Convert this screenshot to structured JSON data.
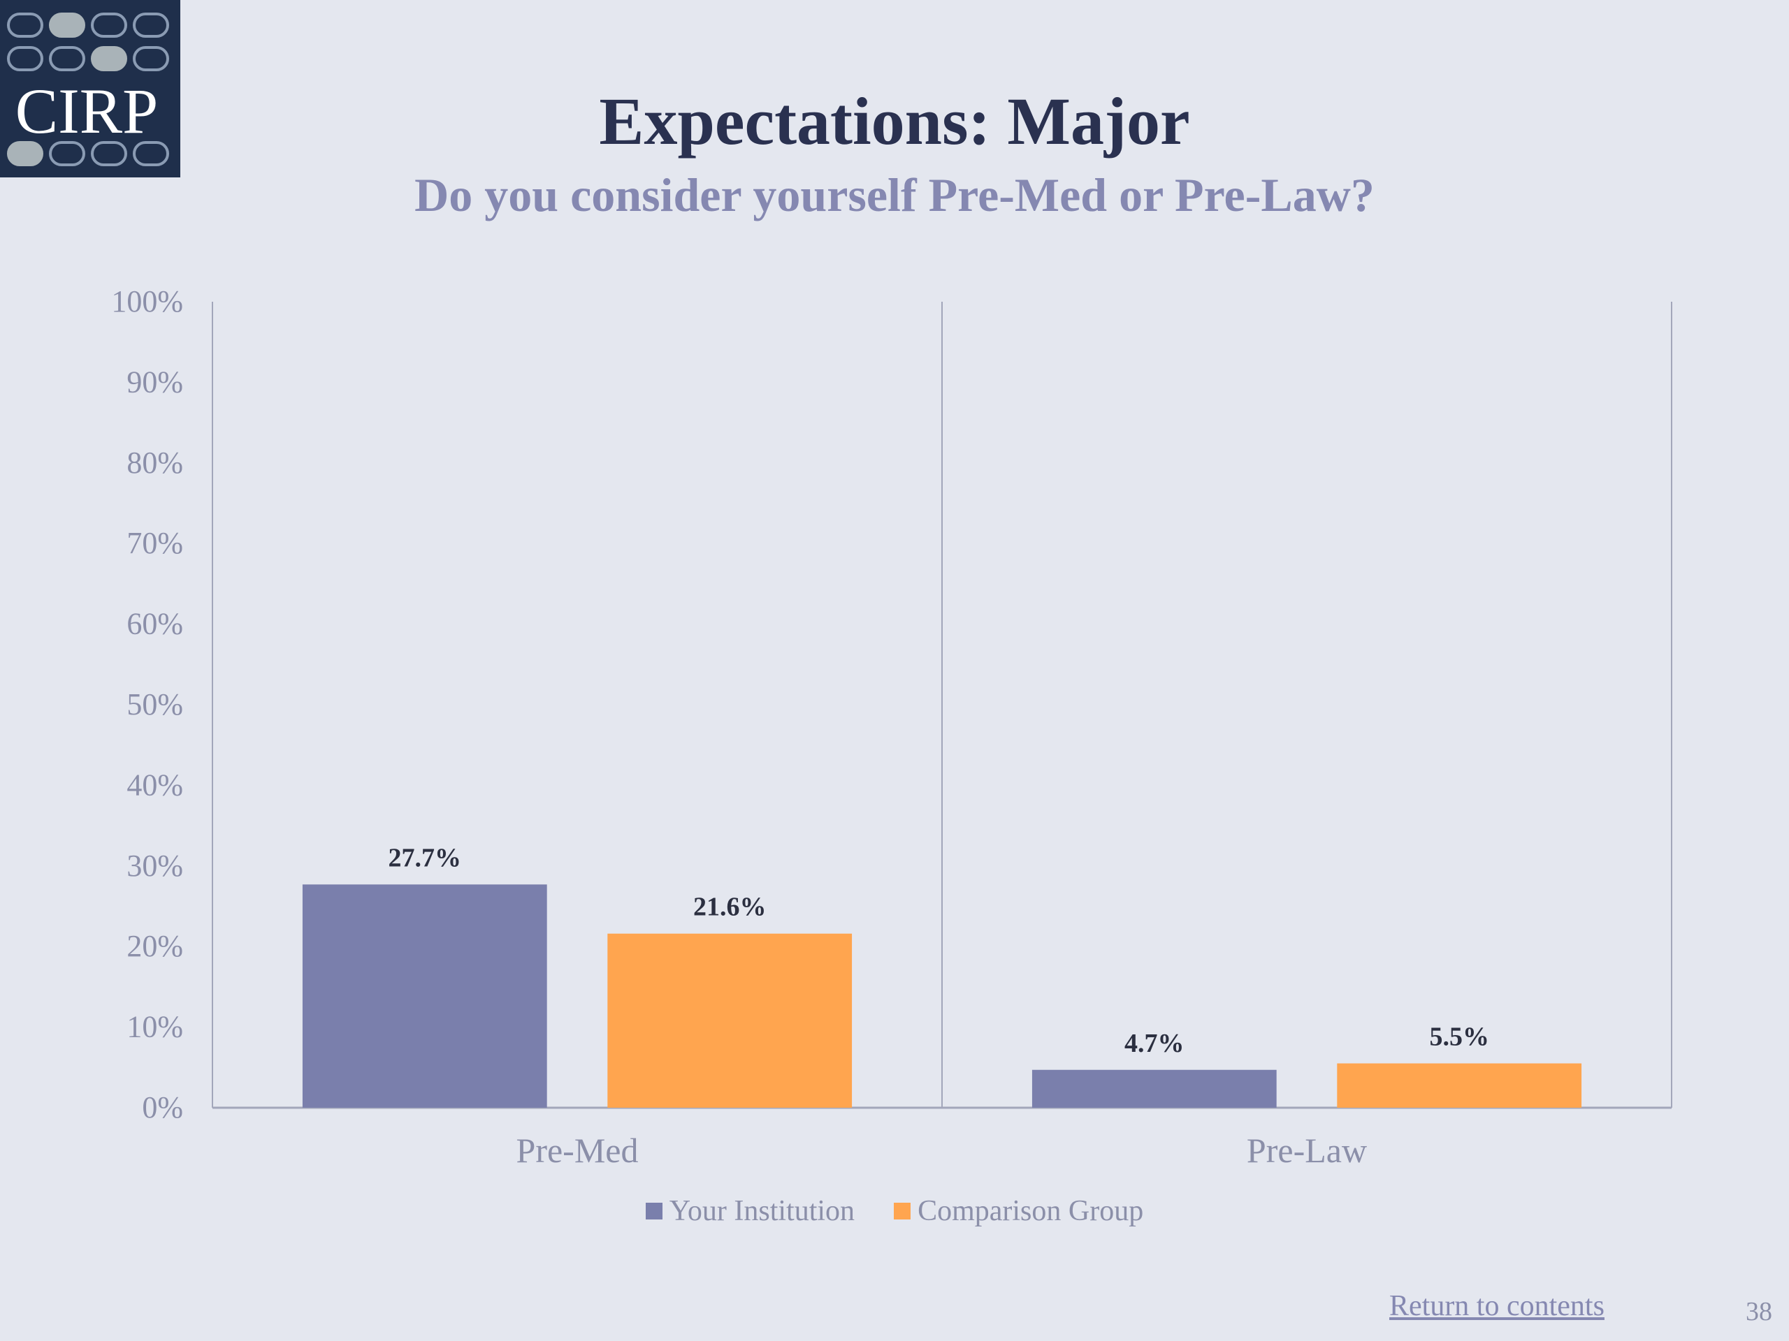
{
  "logo": {
    "text": "CIRP"
  },
  "slide": {
    "title": "Expectations: Major",
    "subtitle": "Do you consider yourself Pre-Med or Pre-Law?",
    "return_link": "Return to contents",
    "page_number": "38"
  },
  "colors": {
    "background": "#e4e7ef",
    "logo_bg": "#1f2f4b",
    "series_1": "#7a7fac",
    "series_2": "#ffa54f",
    "axis_text": "#8b8fa9"
  },
  "chart_data": {
    "type": "bar",
    "categories": [
      "Pre-Med",
      "Pre-Law"
    ],
    "series": [
      {
        "name": "Your Institution",
        "values": [
          27.7,
          4.7
        ],
        "labels": [
          "27.7%",
          "4.7%"
        ],
        "color": "#7a7fac"
      },
      {
        "name": "Comparison Group",
        "values": [
          21.6,
          5.5
        ],
        "labels": [
          "21.6%",
          "5.5%"
        ],
        "color": "#ffa54f"
      }
    ],
    "ylim": [
      0,
      100
    ],
    "yticks": [
      "0%",
      "10%",
      "20%",
      "30%",
      "40%",
      "50%",
      "60%",
      "70%",
      "80%",
      "90%",
      "100%"
    ],
    "grid": false,
    "legend_position": "bottom"
  }
}
